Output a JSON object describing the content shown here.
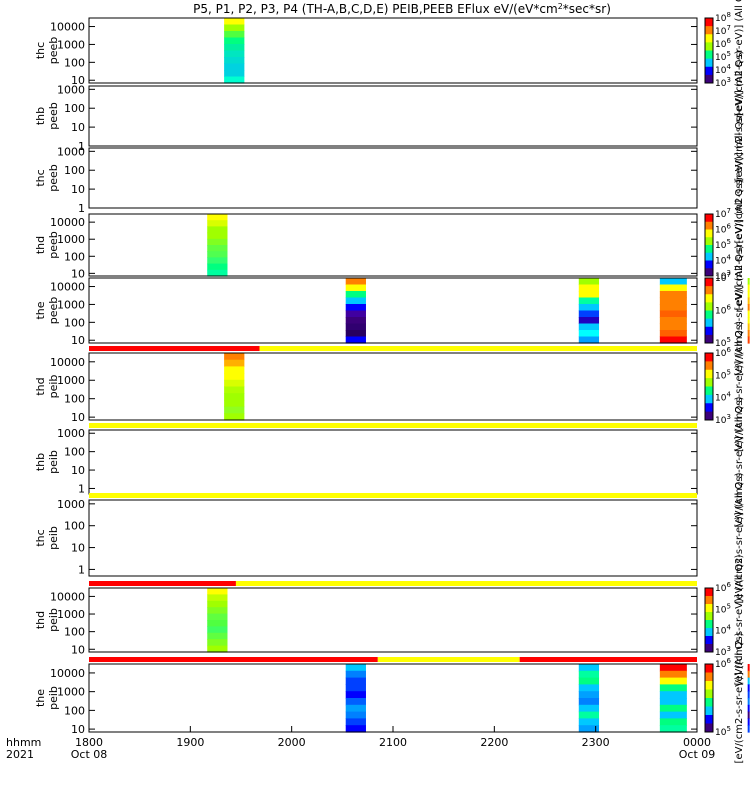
{
  "chart_data": {
    "type": "heatmap",
    "title": "P5, P1, P2, P3, P4 (TH-A,B,C,D,E) PEIB,PEEB EFlux eV/(eV*cm",
    "title_sup": "2",
    "title_end": "*sec*sr)",
    "x_axis": {
      "label_lines": [
        "hhmm",
        "2021"
      ],
      "range": [
        "1800",
        "0000"
      ],
      "ticks": [
        {
          "label": "1800",
          "sub": "Oct 08"
        },
        {
          "label": "1900",
          "sub": ""
        },
        {
          "label": "2000",
          "sub": ""
        },
        {
          "label": "2100",
          "sub": ""
        },
        {
          "label": "2200",
          "sub": ""
        },
        {
          "label": "2300",
          "sub": ""
        },
        {
          "label": "0000",
          "sub": "Oct 09"
        }
      ]
    },
    "colorscale": [
      "#3b007a",
      "#0000ff",
      "#00c8ff",
      "#00ff80",
      "#a0ff00",
      "#ffff00",
      "#ff8000",
      "#ff0000"
    ],
    "panels": [
      {
        "name": "thc peeb",
        "ylabel": [
          "thc",
          "peeb"
        ],
        "yscale": "log",
        "ylim": [
          7,
          30000
        ],
        "yticks": [
          "10",
          "100",
          "1000",
          "10000"
        ],
        "mode_bar": null,
        "blocks": [
          {
            "t0": 1920,
            "t1": 1932,
            "palette": "peeb_thc"
          }
        ],
        "colorbar": {
          "min_exp": 3,
          "max_exp": 8,
          "label": "[eV/(cm2-s-sr-eV)] (All Qs)",
          "label_alt": "[eV/(cm2-s-sr-eV)] (All Qs)"
        }
      },
      {
        "name": "thb peeb",
        "ylabel": [
          "thb",
          "peeb"
        ],
        "yscale": "log",
        "ylim": [
          1,
          1500
        ],
        "yticks": [
          "1",
          "10",
          "100",
          "1000"
        ],
        "mode_bar": null,
        "blocks": [],
        "colorbar": null,
        "side_label": "[eV/(cm2-s-sr-eV)] (All Qs)"
      },
      {
        "name": "thc peeb",
        "ylabel": [
          "thc",
          "peeb"
        ],
        "yscale": "log",
        "ylim": [
          1,
          1500
        ],
        "yticks": [
          "1",
          "10",
          "100",
          "1000"
        ],
        "mode_bar": null,
        "blocks": [],
        "colorbar": null,
        "side_label": "[eV/(cm2-s-sr-eV)] (All Qs)"
      },
      {
        "name": "thd peeb",
        "ylabel": [
          "thd",
          "peeb"
        ],
        "yscale": "log",
        "ylim": [
          7,
          30000
        ],
        "yticks": [
          "10",
          "100",
          "1000",
          "10000"
        ],
        "mode_bar": null,
        "blocks": [
          {
            "t0": 1870,
            "t1": 1882,
            "palette": "peeb_thd"
          }
        ],
        "colorbar": {
          "min_exp": 3,
          "max_exp": 7,
          "label": "[eV/(cm2-s-sr-eV)] (All Qs)"
        }
      },
      {
        "name": "the peeb",
        "ylabel": [
          "the",
          "peeb"
        ],
        "yscale": "log",
        "ylim": [
          7,
          30000
        ],
        "yticks": [
          "10",
          "100",
          "1000",
          "10000"
        ],
        "mode_bar": null,
        "blocks": [
          {
            "t0": 2032,
            "t1": 2044,
            "palette": "peeb_the_a"
          },
          {
            "t0": 2250,
            "t1": 2262,
            "palette": "peeb_the_b"
          },
          {
            "t0": 2338,
            "t1": 2354,
            "palette": "peeb_the_c"
          },
          {
            "t0": 2390,
            "t1": 2400,
            "palette": "peeb_the_d"
          }
        ],
        "colorbar": {
          "min_exp": 5,
          "max_exp": 7,
          "label": "[eV/(cm2-s-sr-eV)] (All Qs)"
        }
      },
      {
        "name": "thd peib",
        "ylabel": [
          "thd",
          "peib"
        ],
        "yscale": "log",
        "ylim": [
          7,
          30000
        ],
        "yticks": [
          "10",
          "100",
          "1000",
          "10000"
        ],
        "mode_bar": [
          {
            "t0": 1800,
            "t1": 1941,
            "color": "#ff0000"
          },
          {
            "t0": 1941,
            "t1": 2400,
            "color": "#ffff00"
          }
        ],
        "blocks": [
          {
            "t0": 1920,
            "t1": 1932,
            "palette": "peib_thd"
          }
        ],
        "colorbar": {
          "min_exp": 3,
          "max_exp": 6,
          "label": "[eV/(cm2-s-sr-eV)] (All Qs)"
        }
      },
      {
        "name": "thb peib",
        "ylabel": [
          "thb",
          "peib"
        ],
        "yscale": "log",
        "ylim": [
          0.5,
          1500
        ],
        "yticks": [
          "1",
          "10",
          "100",
          "1000"
        ],
        "mode_bar": [
          {
            "t0": 1800,
            "t1": 2400,
            "color": "#ffff00"
          }
        ],
        "blocks": [],
        "colorbar": null,
        "side_label": "[eV/(cm2-s-sr-eV)] (All Qs)"
      },
      {
        "name": "thc peib",
        "ylabel": [
          "thc",
          "peib"
        ],
        "yscale": "log",
        "ylim": [
          0.5,
          1500
        ],
        "yticks": [
          "1",
          "10",
          "100",
          "1000"
        ],
        "mode_bar": [
          {
            "t0": 1800,
            "t1": 2400,
            "color": "#ffff00"
          }
        ],
        "blocks": [],
        "colorbar": null,
        "side_label": "[eV/(cm2-s-sr-eV)] (All Qs)"
      },
      {
        "name": "thd peib",
        "ylabel": [
          "thd",
          "peib"
        ],
        "yscale": "log",
        "ylim": [
          7,
          30000
        ],
        "yticks": [
          "10",
          "100",
          "1000",
          "10000"
        ],
        "mode_bar": [
          {
            "t0": 1800,
            "t1": 1887,
            "color": "#ff0000"
          },
          {
            "t0": 1887,
            "t1": 2400,
            "color": "#ffff00"
          }
        ],
        "blocks": [
          {
            "t0": 1870,
            "t1": 1882,
            "palette": "peib_thd2"
          }
        ],
        "colorbar": {
          "min_exp": 3,
          "max_exp": 6,
          "label": "[eV/(cm2-s-sr-eV)] (All Qs)"
        }
      },
      {
        "name": "the peib",
        "ylabel": [
          "the",
          "peib"
        ],
        "yscale": "log",
        "ylim": [
          7,
          30000
        ],
        "yticks": [
          "10",
          "100",
          "1000",
          "10000"
        ],
        "mode_bar": [
          {
            "t0": 1800,
            "t1": 2051,
            "color": "#ff0000"
          },
          {
            "t0": 2051,
            "t1": 2175,
            "color": "#ffff00"
          },
          {
            "t0": 2175,
            "t1": 2400,
            "color": "#ff0000"
          }
        ],
        "blocks": [
          {
            "t0": 2032,
            "t1": 2044,
            "palette": "peib_the_a"
          },
          {
            "t0": 2250,
            "t1": 2262,
            "palette": "peib_the_b"
          },
          {
            "t0": 2338,
            "t1": 2354,
            "palette": "peib_the_c"
          },
          {
            "t0": 2390,
            "t1": 2400,
            "palette": "peib_the_d"
          }
        ],
        "colorbar": {
          "min_exp": 5,
          "max_exp": 6,
          "label": "[eV/(cm2-s-sr-eV)] (All Qs)"
        }
      }
    ],
    "block_palettes": {
      "peeb_thc": [
        "#ffff00",
        "#a0ff00",
        "#50ff40",
        "#00ff80",
        "#00f0a0",
        "#00e6c0",
        "#00dcd0",
        "#00d2e0",
        "#00d2e0",
        "#00ffd0"
      ],
      "peeb_thd": [
        "#ffff00",
        "#d8ff00",
        "#a0ff00",
        "#a0ff00",
        "#80ff20",
        "#60ff40",
        "#50ff50",
        "#30ff70",
        "#00ff80",
        "#00ffa0"
      ],
      "peeb_the_a": [
        "#ff8000",
        "#ffff00",
        "#00ff80",
        "#00c8ff",
        "#0000ff",
        "#4000a0",
        "#3b007a",
        "#300070",
        "#280060",
        "#0000ff"
      ],
      "peeb_the_b": [
        "#a0ff00",
        "#ffff00",
        "#ffff00",
        "#00ffa0",
        "#00c8ff",
        "#0040ff",
        "#2000c0",
        "#00c8ff",
        "#00ffff",
        "#00a0ff"
      ],
      "peeb_the_c": [
        "#00c8ff",
        "#ffff00",
        "#ff8000",
        "#ff8000",
        "#ff8000",
        "#ff6000",
        "#ff8000",
        "#ff8000",
        "#ff6000",
        "#ff0000"
      ],
      "peeb_the_d": [
        "#a0ff00",
        "#ffff00",
        "#ffff00",
        "#ffc000",
        "#ff8000",
        "#ffff00",
        "#ffff00",
        "#ffc000",
        "#ff8000",
        "#ff4000"
      ],
      "peib_thd": [
        "#ff8000",
        "#ffb000",
        "#ffff00",
        "#ffff00",
        "#d8ff00",
        "#b0ff00",
        "#a0ff00",
        "#a0ff00",
        "#90ff20",
        "#a0ff00"
      ],
      "peib_thd2": [
        "#ffff00",
        "#c0ff00",
        "#a0ff00",
        "#80ff20",
        "#60ff40",
        "#50ff40",
        "#40ff60",
        "#60ff40",
        "#80ff20",
        "#a0ff00"
      ],
      "peib_the_a": [
        "#00c8ff",
        "#0080ff",
        "#0040ff",
        "#0040ff",
        "#0000ff",
        "#0060ff",
        "#00a0ff",
        "#0080ff",
        "#0040ff",
        "#0000ff"
      ],
      "peib_the_b": [
        "#00c8ff",
        "#00ffa0",
        "#00ff80",
        "#00c8ff",
        "#00a0ff",
        "#0080ff",
        "#00c8ff",
        "#00ffa0",
        "#00c8ff",
        "#00a0ff"
      ],
      "peib_the_c": [
        "#ff0000",
        "#ff8000",
        "#ffff00",
        "#00ff80",
        "#00c8ff",
        "#00c8ff",
        "#00ff80",
        "#00c8ff",
        "#00ff80",
        "#00ffa0"
      ],
      "peib_the_d": [
        "#ff0000",
        "#ff8000",
        "#00c8ff",
        "#0000ff",
        "#0040ff",
        "#0080ff",
        "#0000ff",
        "#3b007a",
        "#0000ff",
        "#0040ff"
      ]
    }
  }
}
